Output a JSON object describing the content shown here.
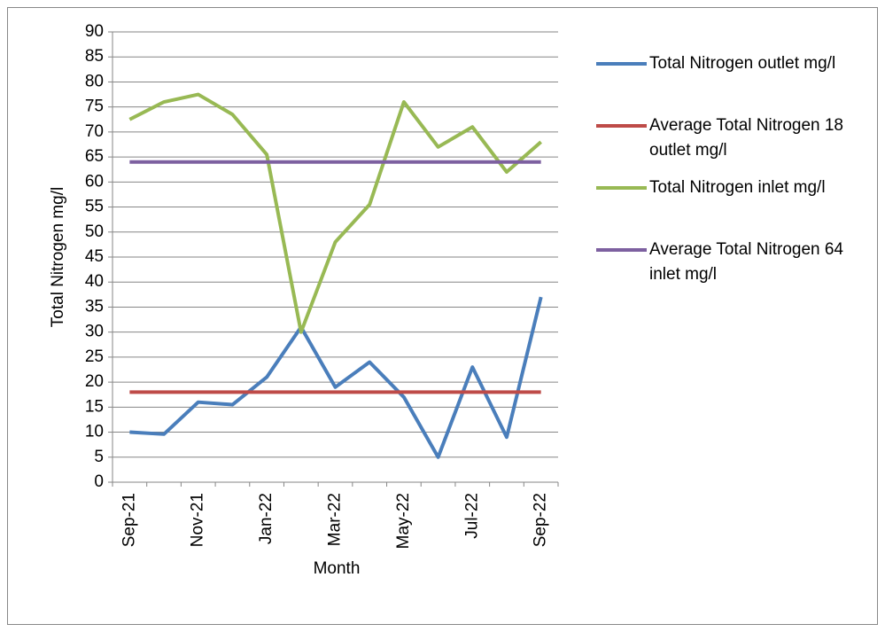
{
  "chart_data": {
    "type": "line",
    "y_label": "Total Nitrogen mg/l",
    "x_label": "Month",
    "categories": [
      "Sep-21",
      null,
      "Nov-21",
      null,
      "Jan-22",
      null,
      "Mar-22",
      null,
      "May-22",
      null,
      "Jul-22",
      null,
      "Sep-22"
    ],
    "series": [
      {
        "name": "Total Nitrogen outlet mg/l",
        "color": "#4a7ebb",
        "values": [
          10,
          9.6,
          16,
          15.5,
          21,
          31,
          19,
          24,
          17,
          5,
          23,
          9,
          37
        ]
      },
      {
        "name": "Average Total Nitrogen 18 outlet mg/l",
        "color": "#be4b48",
        "values": [
          18,
          18,
          18,
          18,
          18,
          18,
          18,
          18,
          18,
          18,
          18,
          18,
          18
        ]
      },
      {
        "name": "Total Nitrogen inlet mg/l",
        "color": "#98b954",
        "values": [
          72.5,
          76,
          77.5,
          73.5,
          65.5,
          30,
          48,
          55.5,
          76,
          67,
          71,
          62,
          68
        ]
      },
      {
        "name": "Average Total Nitrogen 64 inlet mg/l",
        "color": "#7d60a0",
        "values": [
          64,
          64,
          64,
          64,
          64,
          64,
          64,
          64,
          64,
          64,
          64,
          64,
          64
        ]
      }
    ],
    "ylim": [
      0,
      90
    ],
    "yticks": [
      0,
      5,
      10,
      15,
      20,
      25,
      30,
      35,
      40,
      45,
      50,
      55,
      60,
      65,
      70,
      75,
      80,
      85,
      90
    ],
    "grid": true,
    "legend": "right"
  }
}
